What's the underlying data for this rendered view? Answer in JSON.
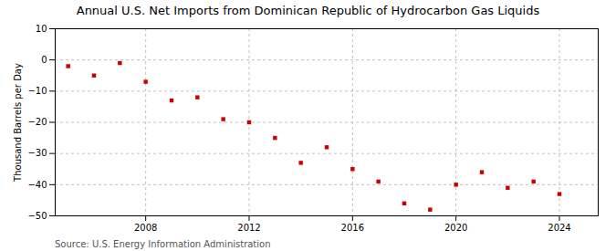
{
  "chart_data": {
    "type": "scatter",
    "title": "Annual U.S. Net Imports from Dominican Republic of Hydrocarbon Gas Liquids",
    "ylabel": "Thousand Barrels per Day",
    "source": "Source: U.S. Energy Information Administration",
    "x": [
      2005,
      2006,
      2007,
      2008,
      2009,
      2010,
      2011,
      2012,
      2013,
      2014,
      2015,
      2016,
      2017,
      2018,
      2019,
      2020,
      2021,
      2022,
      2023,
      2024
    ],
    "values": [
      -2,
      -5,
      -1,
      -7,
      -13,
      -12,
      -19,
      -20,
      -25,
      -33,
      -28,
      -35,
      -39,
      -46,
      -48,
      -40,
      -36,
      -41,
      -39,
      -43
    ],
    "color": "#cc0000",
    "marker": "square",
    "xlim": [
      2004.5,
      2025.5
    ],
    "xticks": [
      2008,
      2012,
      2016,
      2020,
      2024
    ],
    "ylim": [
      -50,
      10
    ],
    "yticks": [
      -50,
      -40,
      -30,
      -20,
      -10,
      0,
      10
    ],
    "grid": true
  }
}
